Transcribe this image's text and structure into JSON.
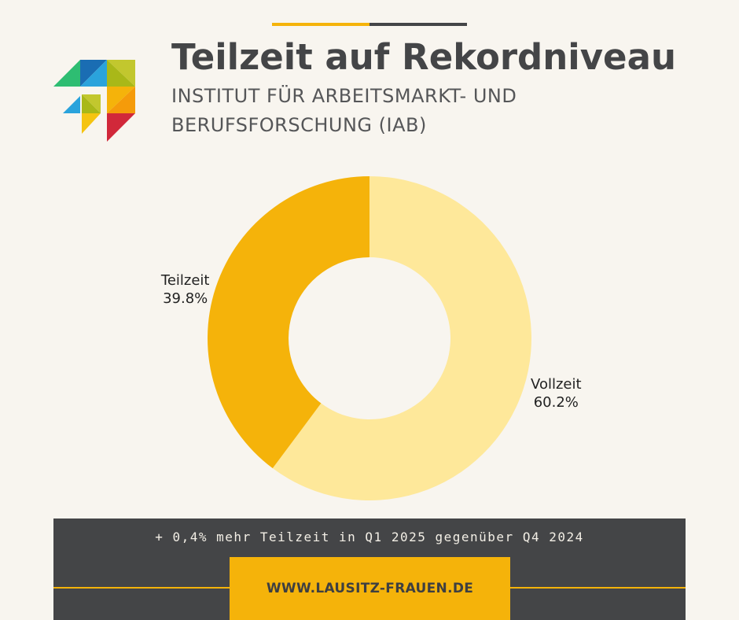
{
  "header": {
    "title": "Teilzeit auf Rekordniveau",
    "subtitle": "INSTITUT FÜR ARBEITSMARKT- UND BERUFSFORSCHUNG (IAB)"
  },
  "colors": {
    "background": "#f8f5ef",
    "accent_yellow": "#f5b30a",
    "light_yellow": "#fee89a",
    "dark_gray": "#444547"
  },
  "chart_data": {
    "type": "pie",
    "variant": "donut",
    "title": "Teilzeit auf Rekordniveau",
    "start_angle_deg": 0,
    "direction": "clockwise",
    "slices": [
      {
        "label": "Vollzeit",
        "value": 60.2,
        "value_label": "60.2%",
        "color": "#fee89a"
      },
      {
        "label": "Teilzeit",
        "value": 39.8,
        "value_label": "39.8%",
        "color": "#f5b30a"
      }
    ]
  },
  "footer": {
    "note": "+ 0,4% mehr Teilzeit in Q1 2025 gegenüber Q4 2024",
    "website": "WWW.LAUSITZ-FRAUEN.DE"
  }
}
